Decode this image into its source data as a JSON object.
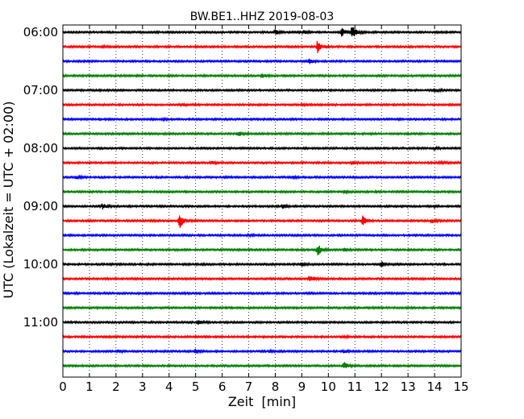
{
  "chart_data": {
    "type": "line",
    "title": "BW.BE1..HHZ 2019-08-03",
    "xlabel": "Zeit  [min]",
    "ylabel": "UTC (Lokalzeit = UTC + 02:00)",
    "xlim": [
      0,
      15
    ],
    "x_ticks": [
      0,
      1,
      2,
      3,
      4,
      5,
      6,
      7,
      8,
      9,
      10,
      11,
      12,
      13,
      14,
      15
    ],
    "grid": "vertical dotted",
    "row_minutes": 15,
    "first_row": "06:00",
    "y_tick_labels": [
      {
        "label": "06:00",
        "row": 0
      },
      {
        "label": "07:00",
        "row": 4
      },
      {
        "label": "08:00",
        "row": 8
      },
      {
        "label": "09:00",
        "row": 12
      },
      {
        "label": "10:00",
        "row": 16
      },
      {
        "label": "11:00",
        "row": 20
      }
    ],
    "trace_colors": [
      "#000000",
      "#ff0000",
      "#0000ff",
      "#008000"
    ],
    "traces": [
      {
        "start": "06:00",
        "color": "#000000",
        "events": [
          [
            8.0,
            0.3
          ],
          [
            9.1,
            0.2
          ],
          [
            10.5,
            0.6
          ],
          [
            10.9,
            1.0
          ]
        ]
      },
      {
        "start": "06:15",
        "color": "#ff0000",
        "events": [
          [
            1.5,
            0.1
          ],
          [
            9.6,
            0.9
          ]
        ]
      },
      {
        "start": "06:30",
        "color": "#0000ff",
        "events": [
          [
            9.3,
            0.3
          ]
        ]
      },
      {
        "start": "06:45",
        "color": "#008000",
        "events": [
          [
            7.5,
            0.25
          ]
        ]
      },
      {
        "start": "07:00",
        "color": "#000000",
        "events": [
          [
            14.0,
            0.3
          ]
        ]
      },
      {
        "start": "07:15",
        "color": "#ff0000",
        "events": [
          [
            4.5,
            0.1
          ],
          [
            9.0,
            0.1
          ]
        ]
      },
      {
        "start": "07:30",
        "color": "#0000ff",
        "events": [
          [
            3.8,
            0.1
          ]
        ]
      },
      {
        "start": "07:45",
        "color": "#008000",
        "events": [
          [
            6.6,
            0.35
          ]
        ]
      },
      {
        "start": "08:00",
        "color": "#000000",
        "events": [
          [
            14.0,
            0.15
          ]
        ]
      },
      {
        "start": "08:15",
        "color": "#ff0000",
        "events": [
          [
            5.6,
            0.2
          ],
          [
            10.9,
            0.25
          ],
          [
            14.2,
            0.15
          ]
        ]
      },
      {
        "start": "08:30",
        "color": "#0000ff",
        "events": [
          [
            0.5,
            0.2
          ],
          [
            8.7,
            0.1
          ]
        ]
      },
      {
        "start": "08:45",
        "color": "#008000",
        "events": [
          [
            10.6,
            0.15
          ]
        ]
      },
      {
        "start": "09:00",
        "color": "#000000",
        "events": [
          [
            1.5,
            0.4
          ],
          [
            8.3,
            0.3
          ],
          [
            14.0,
            0.1
          ]
        ]
      },
      {
        "start": "09:15",
        "color": "#ff0000",
        "events": [
          [
            4.4,
            1.0
          ],
          [
            11.3,
            0.7
          ],
          [
            13.9,
            0.3
          ]
        ]
      },
      {
        "start": "09:30",
        "color": "#0000ff",
        "events": [
          [
            7.0,
            0.1
          ]
        ]
      },
      {
        "start": "09:45",
        "color": "#008000",
        "events": [
          [
            9.6,
            0.8
          ],
          [
            10.6,
            0.2
          ]
        ]
      },
      {
        "start": "10:00",
        "color": "#000000",
        "events": [
          [
            9.0,
            0.2
          ],
          [
            12.0,
            0.35
          ]
        ]
      },
      {
        "start": "10:15",
        "color": "#ff0000",
        "events": [
          [
            9.3,
            0.6
          ]
        ]
      },
      {
        "start": "10:30",
        "color": "#0000ff",
        "events": []
      },
      {
        "start": "10:45",
        "color": "#008000",
        "events": []
      },
      {
        "start": "11:00",
        "color": "#000000",
        "events": [
          [
            5.1,
            0.25
          ]
        ]
      },
      {
        "start": "11:15",
        "color": "#ff0000",
        "events": [
          [
            10.6,
            0.1
          ]
        ]
      },
      {
        "start": "11:30",
        "color": "#0000ff",
        "events": [
          [
            2.1,
            0.15
          ],
          [
            5.0,
            0.25
          ],
          [
            7.8,
            0.1
          ],
          [
            10.6,
            0.25
          ]
        ]
      },
      {
        "start": "11:45",
        "color": "#008000",
        "events": [
          [
            10.6,
            0.5
          ]
        ]
      }
    ]
  }
}
